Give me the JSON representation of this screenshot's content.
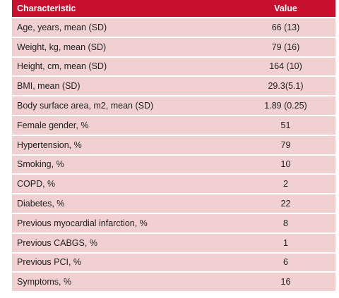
{
  "header": {
    "characteristic": "Characteristic",
    "value": "Value"
  },
  "rows": [
    {
      "label": "Age, years, mean (SD)",
      "value": "66 (13)"
    },
    {
      "label": "Weight, kg, mean (SD)",
      "value": "79 (16)"
    },
    {
      "label": "Height, cm, mean (SD)",
      "value": "164 (10)"
    },
    {
      "label": "BMI, mean (SD)",
      "value": "29.3(5.1)"
    },
    {
      "label": "Body surface area, m2, mean (SD)",
      "value": "1.89 (0.25)"
    },
    {
      "label": "Female gender, %",
      "value": "51"
    },
    {
      "label": "Hypertension, %",
      "value": "79"
    },
    {
      "label": "Smoking, %",
      "value": "10"
    },
    {
      "label": "COPD, %",
      "value": "2"
    },
    {
      "label": "Diabetes, %",
      "value": "22"
    },
    {
      "label": "Previous myocardial infarction, %",
      "value": "8"
    },
    {
      "label": "Previous CABGS, %",
      "value": "1"
    },
    {
      "label": "Previous PCI, %",
      "value": "6"
    },
    {
      "label": "Symptoms, %",
      "value": "16"
    }
  ],
  "colors": {
    "header_bg": "#c8102e",
    "row_bg": "#f0d0d0"
  }
}
